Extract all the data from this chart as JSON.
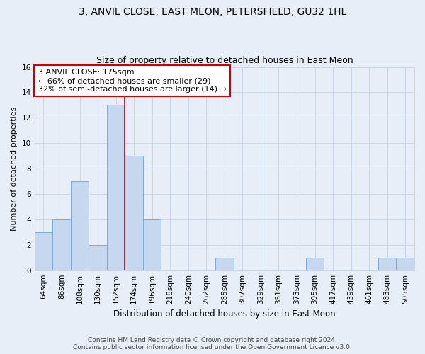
{
  "title": "3, ANVIL CLOSE, EAST MEON, PETERSFIELD, GU32 1HL",
  "subtitle": "Size of property relative to detached houses in East Meon",
  "xlabel": "Distribution of detached houses by size in East Meon",
  "ylabel": "Number of detached properties",
  "categories": [
    "64sqm",
    "86sqm",
    "108sqm",
    "130sqm",
    "152sqm",
    "174sqm",
    "196sqm",
    "218sqm",
    "240sqm",
    "262sqm",
    "285sqm",
    "307sqm",
    "329sqm",
    "351sqm",
    "373sqm",
    "395sqm",
    "417sqm",
    "439sqm",
    "461sqm",
    "483sqm",
    "505sqm"
  ],
  "values": [
    3,
    4,
    7,
    2,
    13,
    9,
    4,
    0,
    0,
    0,
    1,
    0,
    0,
    0,
    0,
    1,
    0,
    0,
    0,
    1,
    1
  ],
  "bar_color": "#c5d8f0",
  "bar_edge_color": "#7aaad4",
  "annotation_line1": "3 ANVIL CLOSE: 175sqm",
  "annotation_line2": "← 66% of detached houses are smaller (29)",
  "annotation_line3": "32% of semi-detached houses are larger (14) →",
  "annotation_box_color": "#ffffff",
  "annotation_box_edge_color": "#cc0000",
  "vline_color": "#cc0000",
  "vline_x": 4.5,
  "ylim": [
    0,
    16
  ],
  "yticks": [
    0,
    2,
    4,
    6,
    8,
    10,
    12,
    14,
    16
  ],
  "grid_color": "#c8d4e8",
  "background_color": "#e8eef8",
  "footnote_line1": "Contains HM Land Registry data © Crown copyright and database right 2024.",
  "footnote_line2": "Contains public sector information licensed under the Open Government Licence v3.0.",
  "title_fontsize": 10,
  "subtitle_fontsize": 9,
  "ylabel_fontsize": 8,
  "xlabel_fontsize": 8.5,
  "tick_fontsize": 7.5,
  "annotation_fontsize": 8,
  "footnote_fontsize": 6.5
}
